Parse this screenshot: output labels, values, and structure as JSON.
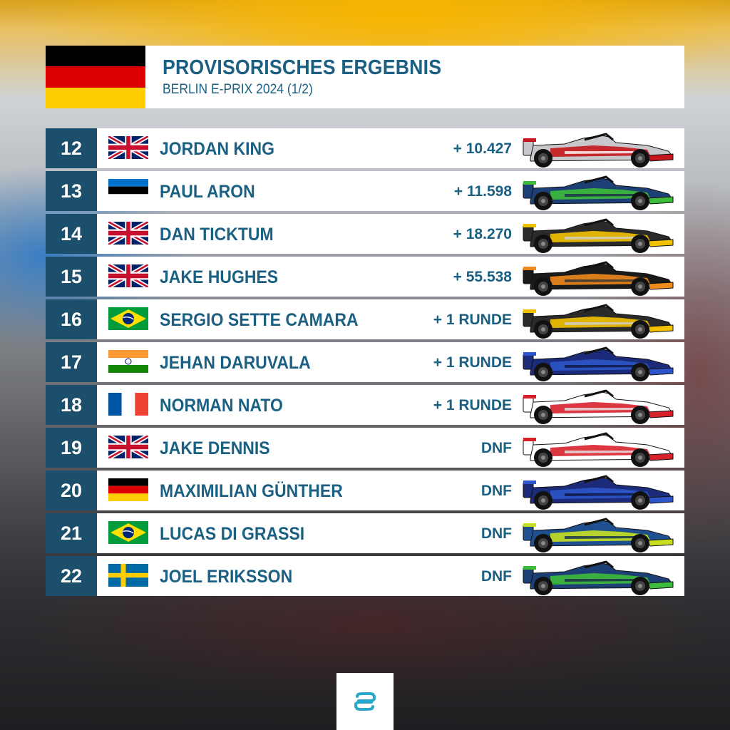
{
  "header": {
    "title": "PROVISORISCHES ERGEBNIS",
    "subtitle": "BERLIN E-PRIX 2024 (1/2)",
    "flag": "germany-flag"
  },
  "results": [
    {
      "pos": "12",
      "name": "JORDAN KING",
      "gap": "+ 10.427",
      "flag": "uk",
      "car": {
        "body": "#c8c8cc",
        "accent": "#c4161c",
        "stripe": "#ffffff"
      }
    },
    {
      "pos": "13",
      "name": "PAUL ARON",
      "gap": "+ 11.598",
      "flag": "estonia",
      "car": {
        "body": "#1c3f75",
        "accent": "#3dbb3a",
        "stripe": "#1b2a4a"
      }
    },
    {
      "pos": "14",
      "name": "DAN TICKTUM",
      "gap": "+ 18.270",
      "flag": "uk",
      "car": {
        "body": "#2a2a2a",
        "accent": "#f2c200",
        "stripe": "#d0d0d0"
      }
    },
    {
      "pos": "15",
      "name": "JAKE HUGHES",
      "gap": "+ 55.538",
      "flag": "uk",
      "car": {
        "body": "#1a1a1a",
        "accent": "#f08a1c",
        "stripe": "#333333"
      }
    },
    {
      "pos": "16",
      "name": "SERGIO SETTE CAMARA",
      "gap": "+ 1 RUNDE",
      "flag": "brazil",
      "car": {
        "body": "#2a2a2a",
        "accent": "#f2c200",
        "stripe": "#d0d0d0"
      }
    },
    {
      "pos": "17",
      "name": "JEHAN DARUVALA",
      "gap": "+ 1 RUNDE",
      "flag": "india",
      "car": {
        "body": "#1b2b7a",
        "accent": "#2d55c9",
        "stripe": "#0e1540"
      }
    },
    {
      "pos": "18",
      "name": "NORMAN NATO",
      "gap": "+ 1 RUNDE",
      "flag": "france",
      "car": {
        "body": "#ffffff",
        "accent": "#d8202b",
        "stripe": "#e8e8e8"
      }
    },
    {
      "pos": "19",
      "name": "JAKE DENNIS",
      "gap": "DNF",
      "flag": "uk",
      "car": {
        "body": "#ffffff",
        "accent": "#d8202b",
        "stripe": "#e8e8e8"
      }
    },
    {
      "pos": "20",
      "name": "MAXIMILIAN GÜNTHER",
      "gap": "DNF",
      "flag": "germany",
      "car": {
        "body": "#1b2b7a",
        "accent": "#2d55c9",
        "stripe": "#0e1540"
      }
    },
    {
      "pos": "21",
      "name": "LUCAS DI GRASSI",
      "gap": "DNF",
      "flag": "brazil",
      "car": {
        "body": "#1e4f8f",
        "accent": "#c6e021",
        "stripe": "#0f2a4f"
      }
    },
    {
      "pos": "22",
      "name": "JOEL ERIKSSON",
      "gap": "DNF",
      "flag": "sweden",
      "car": {
        "body": "#1c3f75",
        "accent": "#3dbb3a",
        "stripe": "#1b2a4a"
      }
    }
  ],
  "logo": "formula-e-logo",
  "colors": {
    "accent_text": "#1b6083",
    "position_box": "#1c4f6b",
    "panel": "#ffffff"
  }
}
